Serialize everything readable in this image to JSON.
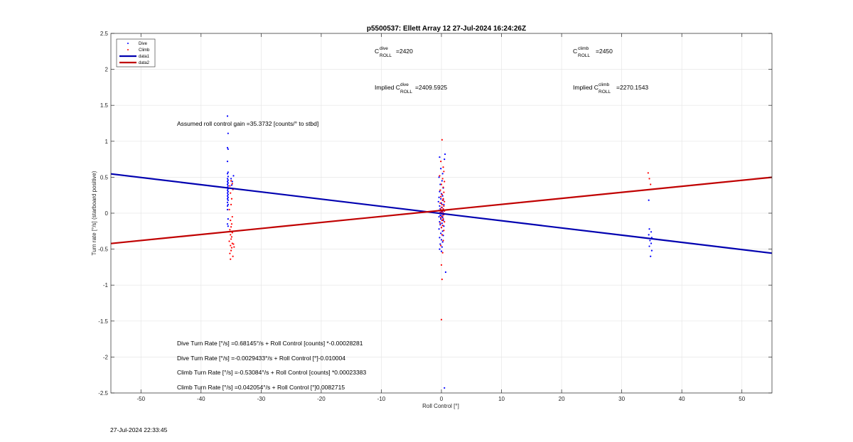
{
  "chart_data": {
    "type": "scatter",
    "title": "p5500537: Ellett Array 12 27-Jul-2024 16:24:26Z",
    "xlabel": "Roll Control [°]",
    "ylabel": "Turn rate [°/s] (starboard positive)",
    "xlim": [
      -55,
      55
    ],
    "ylim": [
      -2.5,
      2.5
    ],
    "xticks": [
      -50,
      -40,
      -30,
      -20,
      -10,
      0,
      10,
      20,
      30,
      40,
      50
    ],
    "yticks": [
      -2.5,
      -2,
      -1.5,
      -1,
      -0.5,
      0,
      0.5,
      1,
      1.5,
      2,
      2.5
    ],
    "ytick_labels": [
      "-2.5",
      "-2",
      "-1.5",
      "-1",
      "-0.5",
      "0",
      "0.5",
      "1",
      "1.5",
      "2",
      "2.5"
    ],
    "grid": true,
    "legend_position": "top-left",
    "legend": [
      {
        "label": "Dive",
        "marker": "dot",
        "color": "#0000ff"
      },
      {
        "label": "Climb",
        "marker": "dot",
        "color": "#ff0000"
      },
      {
        "label": "data1",
        "marker": "line",
        "color": "#0000b0"
      },
      {
        "label": "data2",
        "marker": "line",
        "color": "#c00000"
      }
    ],
    "series": [
      {
        "name": "Dive",
        "color": "#0000ff",
        "points": [
          [
            -35.6,
            1.35
          ],
          [
            -35.5,
            1.11
          ],
          [
            -35.6,
            0.91
          ],
          [
            -35.5,
            0.89
          ],
          [
            -35.6,
            0.72
          ],
          [
            -35.5,
            0.57
          ],
          [
            -35.6,
            0.55
          ],
          [
            -35.5,
            0.51
          ],
          [
            -35.6,
            0.48
          ],
          [
            -35.5,
            0.46
          ],
          [
            -35.6,
            0.44
          ],
          [
            -35.5,
            0.42
          ],
          [
            -35.6,
            0.4
          ],
          [
            -35.5,
            0.38
          ],
          [
            -35.6,
            0.36
          ],
          [
            -35.5,
            0.34
          ],
          [
            -35.6,
            0.32
          ],
          [
            -35.5,
            0.3
          ],
          [
            -35.6,
            0.28
          ],
          [
            -35.5,
            0.26
          ],
          [
            -35.6,
            0.24
          ],
          [
            -35.5,
            0.22
          ],
          [
            -35.6,
            0.2
          ],
          [
            -35.5,
            0.18
          ],
          [
            -35.6,
            0.15
          ],
          [
            -35.5,
            0.12
          ],
          [
            -35.6,
            0.1
          ],
          [
            -35.6,
            0.05
          ],
          [
            -35.5,
            -0.08
          ],
          [
            -35.6,
            -0.15
          ],
          [
            -35.5,
            -0.18
          ],
          [
            -35.0,
            0.48
          ],
          [
            -34.8,
            0.44
          ],
          [
            -34.6,
            0.52
          ],
          [
            -34.9,
            0.39
          ],
          [
            -0.3,
            0.78
          ],
          [
            -0.1,
            0.62
          ],
          [
            0.2,
            0.55
          ],
          [
            -0.4,
            0.5
          ],
          [
            0.1,
            0.45
          ],
          [
            -0.2,
            0.4
          ],
          [
            0.3,
            0.35
          ],
          [
            -0.3,
            0.3
          ],
          [
            0.0,
            0.27
          ],
          [
            0.2,
            0.24
          ],
          [
            -0.4,
            0.22
          ],
          [
            -0.1,
            0.2
          ],
          [
            0.3,
            0.18
          ],
          [
            -0.5,
            0.16
          ],
          [
            0.0,
            0.14
          ],
          [
            0.4,
            0.12
          ],
          [
            -0.3,
            0.1
          ],
          [
            0.1,
            0.08
          ],
          [
            -0.2,
            0.06
          ],
          [
            0.3,
            0.05
          ],
          [
            -0.4,
            0.04
          ],
          [
            0.0,
            0.03
          ],
          [
            0.2,
            0.02
          ],
          [
            -0.1,
            0.01
          ],
          [
            -0.3,
            0.0
          ],
          [
            0.1,
            -0.01
          ],
          [
            0.3,
            -0.02
          ],
          [
            -0.2,
            -0.03
          ],
          [
            0.0,
            -0.04
          ],
          [
            -0.4,
            -0.05
          ],
          [
            0.2,
            -0.06
          ],
          [
            -0.1,
            -0.08
          ],
          [
            0.3,
            -0.1
          ],
          [
            -0.3,
            -0.12
          ],
          [
            0.1,
            -0.14
          ],
          [
            -0.2,
            -0.16
          ],
          [
            0.4,
            -0.18
          ],
          [
            0.0,
            -0.2
          ],
          [
            -0.4,
            -0.22
          ],
          [
            0.2,
            -0.25
          ],
          [
            -0.1,
            -0.28
          ],
          [
            0.3,
            -0.31
          ],
          [
            -0.3,
            -0.34
          ],
          [
            0.0,
            -0.37
          ],
          [
            0.2,
            -0.4
          ],
          [
            -0.2,
            -0.43
          ],
          [
            0.1,
            -0.47
          ],
          [
            -0.3,
            -0.5
          ],
          [
            0.0,
            -0.53
          ],
          [
            0.6,
            0.82
          ],
          [
            0.5,
            0.75
          ],
          [
            0.7,
            -0.82
          ],
          [
            0.5,
            -2.43
          ],
          [
            34.6,
            -0.22
          ],
          [
            34.9,
            -0.26
          ],
          [
            34.5,
            -0.3
          ],
          [
            35.0,
            -0.34
          ],
          [
            34.7,
            -0.38
          ],
          [
            34.9,
            -0.42
          ],
          [
            34.6,
            -0.46
          ],
          [
            35.0,
            -0.52
          ],
          [
            34.8,
            -0.6
          ],
          [
            34.5,
            0.18
          ]
        ]
      },
      {
        "name": "Climb",
        "color": "#ff0000",
        "points": [
          [
            -35.0,
            0.45
          ],
          [
            -34.8,
            0.41
          ],
          [
            -35.2,
            0.38
          ],
          [
            -34.7,
            0.33
          ],
          [
            -35.1,
            0.28
          ],
          [
            -34.9,
            0.2
          ],
          [
            -35.0,
            0.12
          ],
          [
            -35.3,
            0.05
          ],
          [
            -34.8,
            -0.05
          ],
          [
            -35.1,
            -0.1
          ],
          [
            -34.9,
            -0.15
          ],
          [
            -35.0,
            -0.19
          ],
          [
            -35.2,
            -0.23
          ],
          [
            -34.8,
            -0.27
          ],
          [
            -35.1,
            -0.3
          ],
          [
            -34.9,
            -0.33
          ],
          [
            -35.0,
            -0.36
          ],
          [
            -35.3,
            -0.39
          ],
          [
            -34.8,
            -0.42
          ],
          [
            -35.1,
            -0.45
          ],
          [
            -34.9,
            -0.48
          ],
          [
            -35.0,
            -0.52
          ],
          [
            -35.2,
            -0.56
          ],
          [
            -34.7,
            -0.6
          ],
          [
            -35.1,
            -0.64
          ],
          [
            -34.6,
            -0.43
          ],
          [
            -34.5,
            -0.47
          ],
          [
            0.1,
            1.02
          ],
          [
            -0.1,
            0.72
          ],
          [
            0.3,
            0.64
          ],
          [
            0.4,
            0.58
          ],
          [
            -0.3,
            0.52
          ],
          [
            0.2,
            0.48
          ],
          [
            0.5,
            0.44
          ],
          [
            0.0,
            0.4
          ],
          [
            0.3,
            0.36
          ],
          [
            -0.2,
            0.32
          ],
          [
            0.4,
            0.29
          ],
          [
            0.1,
            0.26
          ],
          [
            -0.1,
            0.23
          ],
          [
            0.3,
            0.2
          ],
          [
            0.2,
            0.18
          ],
          [
            0.5,
            0.16
          ],
          [
            -0.2,
            0.14
          ],
          [
            0.1,
            0.12
          ],
          [
            0.4,
            0.1
          ],
          [
            0.0,
            0.08
          ],
          [
            0.3,
            0.06
          ],
          [
            -0.1,
            0.05
          ],
          [
            0.2,
            0.04
          ],
          [
            0.5,
            0.03
          ],
          [
            0.1,
            0.02
          ],
          [
            -0.2,
            0.01
          ],
          [
            0.3,
            0.0
          ],
          [
            0.0,
            -0.01
          ],
          [
            0.4,
            -0.02
          ],
          [
            0.2,
            -0.04
          ],
          [
            -0.1,
            -0.06
          ],
          [
            0.3,
            -0.08
          ],
          [
            0.1,
            -0.1
          ],
          [
            0.5,
            -0.12
          ],
          [
            -0.2,
            -0.14
          ],
          [
            0.2,
            -0.17
          ],
          [
            0.0,
            -0.2
          ],
          [
            0.4,
            -0.24
          ],
          [
            0.1,
            -0.3
          ],
          [
            0.3,
            -0.38
          ],
          [
            -0.1,
            -0.45
          ],
          [
            0.2,
            -0.55
          ],
          [
            0.0,
            -0.72
          ],
          [
            0.1,
            -0.92
          ],
          [
            0.0,
            -1.48
          ],
          [
            34.4,
            0.56
          ],
          [
            34.6,
            0.48
          ],
          [
            34.8,
            0.4
          ]
        ]
      },
      {
        "name": "data1",
        "type": "line",
        "color": "#0000b0",
        "x": [
          -55,
          55
        ],
        "y": [
          0.5465,
          -0.5564
        ]
      },
      {
        "name": "data2",
        "type": "line",
        "color": "#c00000",
        "x": [
          -55,
          55
        ],
        "y": [
          -0.4221,
          0.4992
        ]
      }
    ],
    "annotations": {
      "c_dive": {
        "base": "C",
        "sup": "dive",
        "sub": "ROLL",
        "value": "=2420"
      },
      "c_climb": {
        "base": "C",
        "sup": "climb",
        "sub": "ROLL",
        "value": "=2450"
      },
      "implied_dive": {
        "prefix": "Implied C",
        "sup": "dive",
        "sub": "ROLL",
        "value": "=2409.5925"
      },
      "implied_climb": {
        "prefix": "Implied C",
        "sup": "climb",
        "sub": "ROLL",
        "value": "=2270.1543"
      },
      "gain": "Assumed roll control gain =35.3732 [counts/° to stbd]",
      "eq1": "Dive Turn Rate [°/s] =0.68145°/s + Roll Control [counts] *-0.00028281",
      "eq2": "Dive Turn Rate [°/s] =-0.0029433°/s + Roll Control [°]-0.010004",
      "eq3": "Climb Turn Rate [°/s] =-0.53084°/s + Roll Control [counts] *0.00023383",
      "eq4": "Climb Turn Rate [°/s] =0.042054°/s + Roll Control [°]0.0082715"
    }
  },
  "footer": {
    "timestamp": "27-Jul-2024 22:33:45"
  }
}
